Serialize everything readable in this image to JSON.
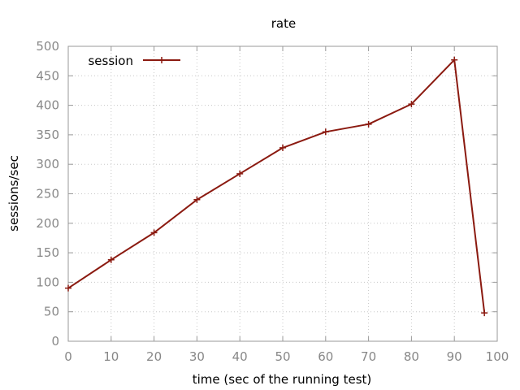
{
  "chart_data": {
    "type": "line",
    "title": "rate",
    "xlabel": "time (sec of the running test)",
    "ylabel": "sessions/sec",
    "xlim": [
      0,
      100
    ],
    "ylim": [
      0,
      500
    ],
    "x_ticks": [
      0,
      10,
      20,
      30,
      40,
      50,
      60,
      70,
      80,
      90,
      100
    ],
    "y_ticks": [
      0,
      50,
      100,
      150,
      200,
      250,
      300,
      350,
      400,
      450,
      500
    ],
    "grid": true,
    "legend_position": "top-left",
    "series": [
      {
        "name": "session",
        "color": "#8b1a10",
        "marker": "plus",
        "x": [
          0,
          10,
          20,
          30,
          40,
          50,
          60,
          70,
          80,
          90,
          97
        ],
        "y": [
          90,
          138,
          184,
          240,
          284,
          328,
          355,
          368,
          402,
          477,
          48
        ]
      }
    ]
  }
}
